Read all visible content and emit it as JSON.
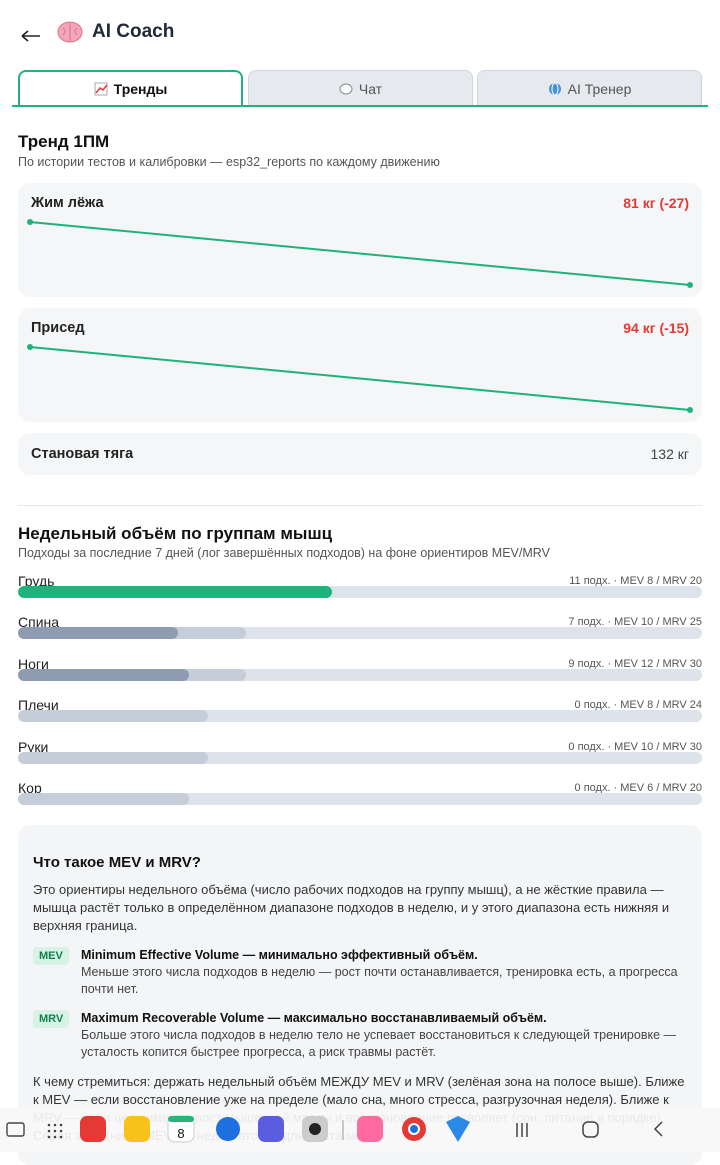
{
  "header": {
    "title": "AI Coach"
  },
  "tabs": [
    "Тренды",
    "Чат",
    "AI Тренер"
  ],
  "active_tab": 0,
  "trend": {
    "title": "Тренд 1ПМ",
    "subtitle": "По истории тестов и калибровки — esp32_reports по каждому движению",
    "lifts": [
      {
        "name": "Жим лёжа",
        "value_label": "81 кг (-27)",
        "values": [
          108,
          81
        ]
      },
      {
        "name": "Присед",
        "value_label": "94 кг (-15)",
        "values": [
          109,
          94
        ]
      },
      {
        "name": "Становая тяга",
        "value_label": "132 кг"
      }
    ]
  },
  "volume": {
    "title": "Недельный объём по группам мышц",
    "subtitle": "Подходы за последние 7 дней (лог завершённых подходов) на фоне ориентиров MEV/MRV",
    "groups": [
      {
        "name": "Грудь",
        "label": "11 подх. · MEV 8 / MRV 20",
        "sets": 11,
        "mev": 8,
        "mrv": 20
      },
      {
        "name": "Спина",
        "label": "7 подх. · MEV 10 / MRV 25",
        "sets": 7,
        "mev": 10,
        "mrv": 25
      },
      {
        "name": "Ноги",
        "label": "9 подх. · MEV 12 / MRV 30",
        "sets": 9,
        "mev": 12,
        "mrv": 30
      },
      {
        "name": "Плечи",
        "label": "0 подх. · MEV 8 / MRV 24",
        "sets": 0,
        "mev": 8,
        "mrv": 24
      },
      {
        "name": "Руки",
        "label": "0 подх. · MEV 10 / MRV 30",
        "sets": 0,
        "mev": 10,
        "mrv": 30
      },
      {
        "name": "Кор",
        "label": "0 подх. · MEV 6 / MRV 20",
        "sets": 0,
        "mev": 6,
        "mrv": 20
      }
    ]
  },
  "info": {
    "title": "Что такое MEV и MRV?",
    "intro": "Это ориентиры недельного объёма (число рабочих подходов на группу мышц), а не жёсткие правила — мышца растёт только в определённом диапазоне подходов в неделю, и у этого диапазона есть нижняя и верхняя граница.",
    "terms": [
      {
        "badge": "MEV",
        "title": "Minimum Effective Volume — минимально эффективный объём.",
        "desc": "Меньше этого числа подходов в неделю — рост почти останавливается, тренировка есть, а прогресса почти нет."
      },
      {
        "badge": "MRV",
        "title": "Maximum Recoverable Volume — максимально восстанавливаемый объём.",
        "desc": "Больше этого числа подходов в неделю тело не успевает восстановиться к следующей тренировке — усталость копится быстрее прогресса, а риск травмы растёт."
      }
    ],
    "outro": "К чему стремиться: держать недельный объём МЕЖДУ MEV и MRV (зелёная зона на полосе выше). Ближе к MEV — если восстановление уже на пределе (мало сна, много стресса, разгрузочная неделя). Ближе к MRV — если цель именно рост мышечной массы и восстановление позволяет (сон, питание в порядке). Серая зона (ниже MEV) — недостаточно для роста мышц."
  },
  "nav": {
    "calendar_day": "8"
  }
}
